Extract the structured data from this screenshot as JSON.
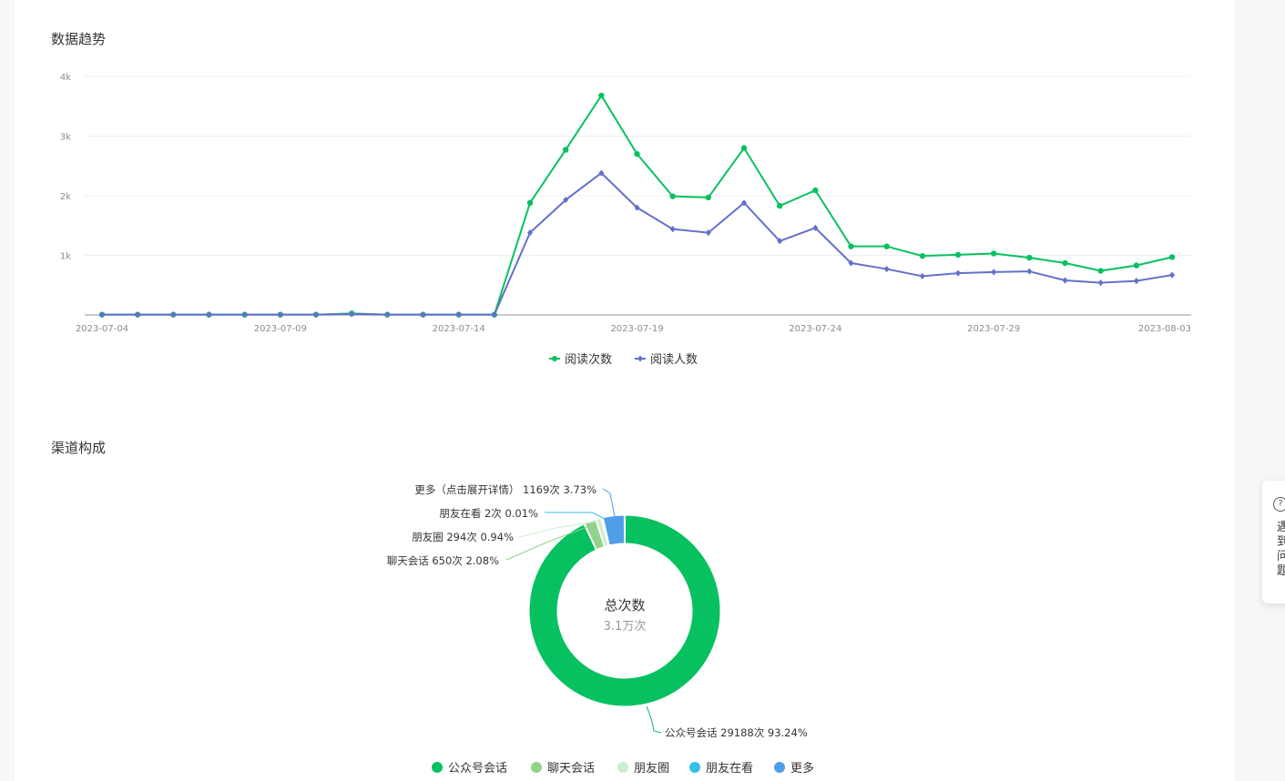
{
  "trend": {
    "title": "数据趋势",
    "legend": {
      "reads": "阅读次数",
      "readers": "阅读人数"
    }
  },
  "channel": {
    "title": "渠道构成"
  },
  "side_widget": {
    "text": "遇到问题"
  },
  "colors": {
    "green": "#07c160",
    "purple": "#6470c9",
    "light_green": "#91d38a",
    "pale_green": "#cdeccd",
    "cyan": "#33c2e6",
    "blue": "#4f9ee8",
    "grid": "#efefef",
    "axis": "#b8b8b8"
  },
  "chart_data": [
    {
      "type": "line",
      "title": "",
      "x": [
        "2023-07-04",
        "2023-07-05",
        "2023-07-06",
        "2023-07-07",
        "2023-07-08",
        "2023-07-09",
        "2023-07-10",
        "2023-07-11",
        "2023-07-12",
        "2023-07-13",
        "2023-07-14",
        "2023-07-15",
        "2023-07-16",
        "2023-07-17",
        "2023-07-18",
        "2023-07-19",
        "2023-07-20",
        "2023-07-21",
        "2023-07-22",
        "2023-07-23",
        "2023-07-24",
        "2023-07-25",
        "2023-07-26",
        "2023-07-27",
        "2023-07-28",
        "2023-07-29",
        "2023-07-30",
        "2023-07-31",
        "2023-08-01",
        "2023-08-02",
        "2023-08-03"
      ],
      "x_tick_labels": [
        "2023-07-04",
        "2023-07-09",
        "2023-07-14",
        "2023-07-19",
        "2023-07-24",
        "2023-07-29",
        "2023-08-03"
      ],
      "y_tick_labels": [
        "1k",
        "2k",
        "3k",
        "4k"
      ],
      "ylim": [
        0,
        4000
      ],
      "grid": true,
      "legend_position": "bottom",
      "series": [
        {
          "name": "阅读次数",
          "color": "#07c160",
          "values": [
            5,
            5,
            5,
            5,
            5,
            5,
            5,
            25,
            5,
            5,
            5,
            5,
            1880,
            2770,
            3680,
            2700,
            1990,
            1970,
            2800,
            1830,
            2090,
            1150,
            1150,
            990,
            1010,
            1030,
            960,
            870,
            740,
            830,
            970
          ]
        },
        {
          "name": "阅读人数",
          "color": "#6470c9",
          "values": [
            5,
            5,
            5,
            5,
            5,
            5,
            5,
            15,
            5,
            5,
            5,
            5,
            1380,
            1930,
            2380,
            1800,
            1440,
            1380,
            1880,
            1240,
            1460,
            870,
            770,
            650,
            700,
            720,
            730,
            580,
            540,
            570,
            670
          ]
        }
      ]
    },
    {
      "type": "pie",
      "donut": true,
      "center_title": "总次数",
      "center_value": "3.1万次",
      "legend_position": "bottom",
      "slices": [
        {
          "name": "公众号会话",
          "value": 29188,
          "percent": "93.24%",
          "label": "公众号会话 29188次 93.24%",
          "color": "#07c160"
        },
        {
          "name": "聊天会话",
          "value": 650,
          "percent": "2.08%",
          "label": "聊天会话 650次 2.08%",
          "color": "#91d38a"
        },
        {
          "name": "朋友圈",
          "value": 294,
          "percent": "0.94%",
          "label": "朋友圈 294次 0.94%",
          "color": "#cdeccd"
        },
        {
          "name": "朋友在看",
          "value": 2,
          "percent": "0.01%",
          "label": "朋友在看 2次 0.01%",
          "color": "#33c2e6"
        },
        {
          "name": "更多",
          "value": 1169,
          "percent": "3.73%",
          "label": "更多（点击展开详情） 1169次 3.73%",
          "color": "#4f9ee8"
        }
      ]
    }
  ]
}
